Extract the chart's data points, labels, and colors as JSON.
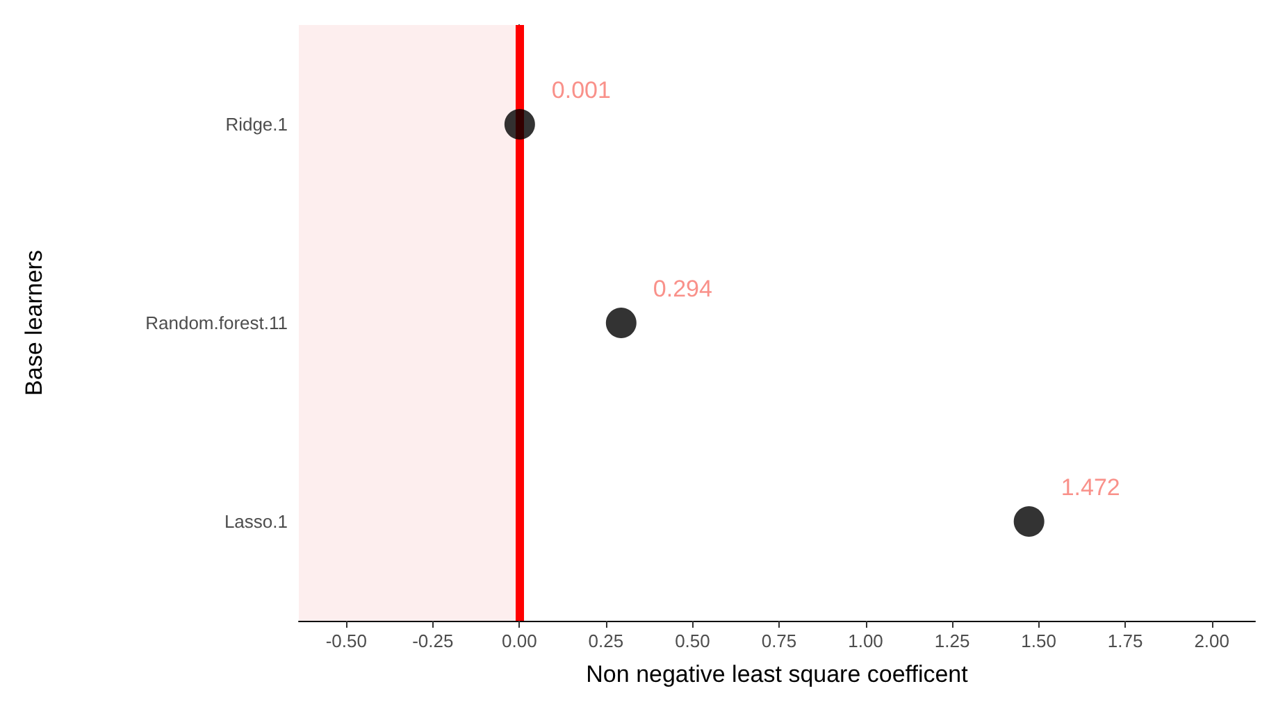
{
  "chart_data": {
    "type": "scatter",
    "orientation": "horizontal",
    "xlabel": "Non negative least square coefficent",
    "ylabel": "Base learners",
    "categories": [
      "Ridge.1",
      "Random.forest.11",
      "Lasso.1"
    ],
    "series": [
      {
        "color": "#000000",
        "values": [
          0.001,
          0.294,
          1.472
        ]
      }
    ],
    "data_labels": true,
    "marker": "circle",
    "grid": false,
    "xlim": [
      -0.637,
      2.125
    ],
    "xticks": [
      {
        "value": -0.5,
        "label": "-0.50"
      },
      {
        "value": -0.25,
        "label": "-0.25"
      },
      {
        "value": 0,
        "label": "0.00"
      },
      {
        "value": 0.25,
        "label": "0.25"
      },
      {
        "value": 0.5,
        "label": "0.50"
      },
      {
        "value": 0.75,
        "label": "0.75"
      },
      {
        "value": 1,
        "label": "1.00"
      },
      {
        "value": 1.25,
        "label": "1.25"
      },
      {
        "value": 1.5,
        "label": "1.50"
      },
      {
        "value": 1.75,
        "label": "1.75"
      },
      {
        "value": 2,
        "label": "2.00"
      }
    ],
    "ref_lines": [
      {
        "axis": "x",
        "value": 0,
        "color": "#ff0000"
      }
    ],
    "bands": [
      {
        "axis": "x",
        "from": -0.637,
        "to": 0,
        "color": "#fdeeee"
      }
    ]
  }
}
